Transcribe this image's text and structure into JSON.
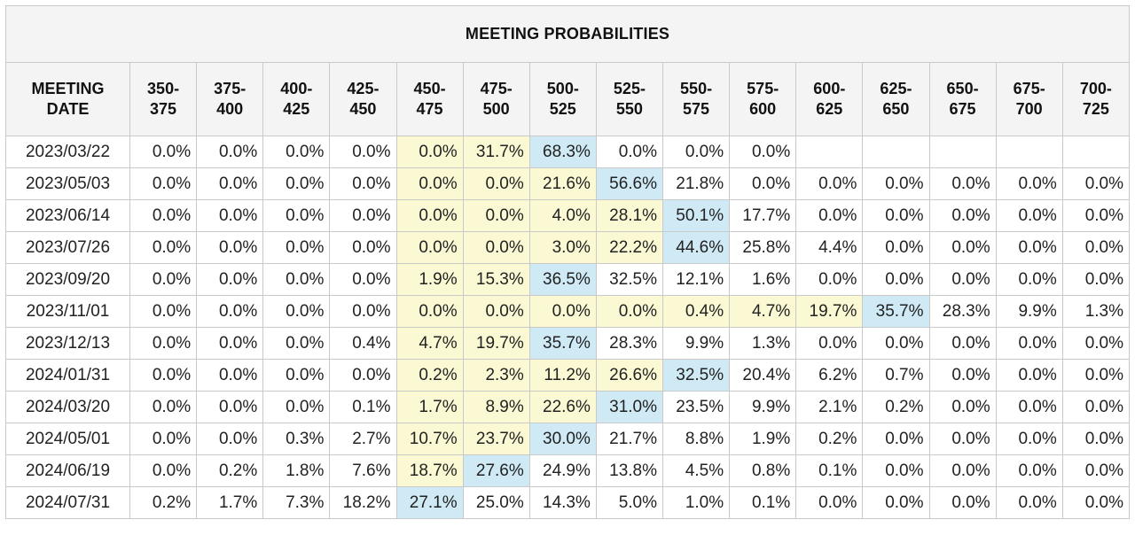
{
  "title": "MEETING PROBABILITIES",
  "header": {
    "meeting_date": [
      "MEETING",
      "DATE"
    ],
    "ranges": [
      [
        "350-",
        "375"
      ],
      [
        "375-",
        "400"
      ],
      [
        "400-",
        "425"
      ],
      [
        "425-",
        "450"
      ],
      [
        "450-",
        "475"
      ],
      [
        "475-",
        "500"
      ],
      [
        "500-",
        "525"
      ],
      [
        "525-",
        "550"
      ],
      [
        "550-",
        "575"
      ],
      [
        "575-",
        "600"
      ],
      [
        "600-",
        "625"
      ],
      [
        "625-",
        "650"
      ],
      [
        "650-",
        "675"
      ],
      [
        "675-",
        "700"
      ],
      [
        "700-",
        "725"
      ]
    ]
  },
  "colors": {
    "yellow": "#fbf9d3",
    "blue": "#cfeaf5",
    "header_bg": "#f4f4f4",
    "border": "#c9c9c9"
  },
  "rows": [
    {
      "date": "2023/03/22",
      "values": [
        "0.0%",
        "0.0%",
        "0.0%",
        "0.0%",
        "0.0%",
        "31.7%",
        "68.3%",
        "0.0%",
        "0.0%",
        "0.0%",
        "",
        "",
        "",
        "",
        ""
      ],
      "hl": [
        "",
        "",
        "",
        "",
        "y",
        "y",
        "b",
        "",
        "",
        "",
        "",
        "",
        "",
        "",
        ""
      ]
    },
    {
      "date": "2023/05/03",
      "values": [
        "0.0%",
        "0.0%",
        "0.0%",
        "0.0%",
        "0.0%",
        "0.0%",
        "21.6%",
        "56.6%",
        "21.8%",
        "0.0%",
        "0.0%",
        "0.0%",
        "0.0%",
        "0.0%",
        "0.0%"
      ],
      "hl": [
        "",
        "",
        "",
        "",
        "y",
        "y",
        "y",
        "b",
        "",
        "",
        "",
        "",
        "",
        "",
        ""
      ]
    },
    {
      "date": "2023/06/14",
      "values": [
        "0.0%",
        "0.0%",
        "0.0%",
        "0.0%",
        "0.0%",
        "0.0%",
        "4.0%",
        "28.1%",
        "50.1%",
        "17.7%",
        "0.0%",
        "0.0%",
        "0.0%",
        "0.0%",
        "0.0%"
      ],
      "hl": [
        "",
        "",
        "",
        "",
        "y",
        "y",
        "y",
        "y",
        "b",
        "",
        "",
        "",
        "",
        "",
        ""
      ]
    },
    {
      "date": "2023/07/26",
      "values": [
        "0.0%",
        "0.0%",
        "0.0%",
        "0.0%",
        "0.0%",
        "0.0%",
        "3.0%",
        "22.2%",
        "44.6%",
        "25.8%",
        "4.4%",
        "0.0%",
        "0.0%",
        "0.0%",
        "0.0%"
      ],
      "hl": [
        "",
        "",
        "",
        "",
        "y",
        "y",
        "y",
        "y",
        "b",
        "",
        "",
        "",
        "",
        "",
        ""
      ]
    },
    {
      "date": "2023/09/20",
      "values": [
        "0.0%",
        "0.0%",
        "0.0%",
        "0.0%",
        "1.9%",
        "15.3%",
        "36.5%",
        "32.5%",
        "12.1%",
        "1.6%",
        "0.0%",
        "0.0%",
        "0.0%",
        "0.0%",
        "0.0%"
      ],
      "hl": [
        "",
        "",
        "",
        "",
        "y",
        "y",
        "b",
        "",
        "",
        "",
        "",
        "",
        "",
        "",
        ""
      ]
    },
    {
      "date": "2023/11/01",
      "values": [
        "0.0%",
        "0.0%",
        "0.0%",
        "0.0%",
        "0.0%",
        "0.0%",
        "0.0%",
        "0.0%",
        "0.4%",
        "4.7%",
        "19.7%",
        "35.7%",
        "28.3%",
        "9.9%",
        "1.3%"
      ],
      "hl": [
        "",
        "",
        "",
        "",
        "y",
        "y",
        "y",
        "y",
        "y",
        "y",
        "y",
        "b",
        "",
        "",
        ""
      ]
    },
    {
      "date": "2023/12/13",
      "values": [
        "0.0%",
        "0.0%",
        "0.0%",
        "0.4%",
        "4.7%",
        "19.7%",
        "35.7%",
        "28.3%",
        "9.9%",
        "1.3%",
        "0.0%",
        "0.0%",
        "0.0%",
        "0.0%",
        "0.0%"
      ],
      "hl": [
        "",
        "",
        "",
        "",
        "y",
        "y",
        "b",
        "",
        "",
        "",
        "",
        "",
        "",
        "",
        ""
      ]
    },
    {
      "date": "2024/01/31",
      "values": [
        "0.0%",
        "0.0%",
        "0.0%",
        "0.0%",
        "0.2%",
        "2.3%",
        "11.2%",
        "26.6%",
        "32.5%",
        "20.4%",
        "6.2%",
        "0.7%",
        "0.0%",
        "0.0%",
        "0.0%"
      ],
      "hl": [
        "",
        "",
        "",
        "",
        "y",
        "y",
        "y",
        "y",
        "b",
        "",
        "",
        "",
        "",
        "",
        ""
      ]
    },
    {
      "date": "2024/03/20",
      "values": [
        "0.0%",
        "0.0%",
        "0.0%",
        "0.1%",
        "1.7%",
        "8.9%",
        "22.6%",
        "31.0%",
        "23.5%",
        "9.9%",
        "2.1%",
        "0.2%",
        "0.0%",
        "0.0%",
        "0.0%"
      ],
      "hl": [
        "",
        "",
        "",
        "",
        "y",
        "y",
        "y",
        "b",
        "",
        "",
        "",
        "",
        "",
        "",
        ""
      ]
    },
    {
      "date": "2024/05/01",
      "values": [
        "0.0%",
        "0.0%",
        "0.3%",
        "2.7%",
        "10.7%",
        "23.7%",
        "30.0%",
        "21.7%",
        "8.8%",
        "1.9%",
        "0.2%",
        "0.0%",
        "0.0%",
        "0.0%",
        "0.0%"
      ],
      "hl": [
        "",
        "",
        "",
        "",
        "y",
        "y",
        "b",
        "",
        "",
        "",
        "",
        "",
        "",
        "",
        ""
      ]
    },
    {
      "date": "2024/06/19",
      "values": [
        "0.0%",
        "0.2%",
        "1.8%",
        "7.6%",
        "18.7%",
        "27.6%",
        "24.9%",
        "13.8%",
        "4.5%",
        "0.8%",
        "0.1%",
        "0.0%",
        "0.0%",
        "0.0%",
        "0.0%"
      ],
      "hl": [
        "",
        "",
        "",
        "",
        "y",
        "b",
        "",
        "",
        "",
        "",
        "",
        "",
        "",
        "",
        ""
      ]
    },
    {
      "date": "2024/07/31",
      "values": [
        "0.2%",
        "1.7%",
        "7.3%",
        "18.2%",
        "27.1%",
        "25.0%",
        "14.3%",
        "5.0%",
        "1.0%",
        "0.1%",
        "0.0%",
        "0.0%",
        "0.0%",
        "0.0%",
        "0.0%"
      ],
      "hl": [
        "",
        "",
        "",
        "",
        "b",
        "",
        "",
        "",
        "",
        "",
        "",
        "",
        "",
        "",
        ""
      ]
    }
  ]
}
